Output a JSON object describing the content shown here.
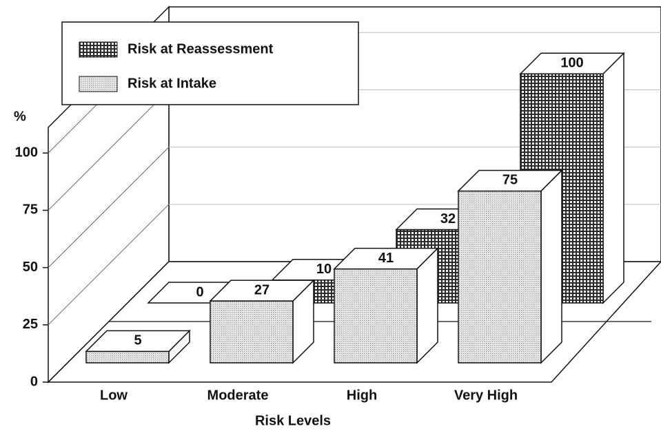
{
  "chart_data": {
    "type": "bar3d",
    "categories": [
      "Low",
      "Moderate",
      "High",
      "Very High"
    ],
    "series": [
      {
        "name": "Risk at Reassessment",
        "color": "#2a2a2a",
        "values": [
          0,
          10,
          32,
          100
        ]
      },
      {
        "name": "Risk at Intake",
        "color": "#9a9a9a",
        "values": [
          5,
          27,
          41,
          75
        ]
      }
    ],
    "ylabel": "%",
    "xlabel": "Risk Levels",
    "ylim": [
      0,
      110
    ],
    "yticks": [
      0,
      25,
      50,
      75,
      100
    ],
    "grid": true,
    "legend": "top-left"
  }
}
